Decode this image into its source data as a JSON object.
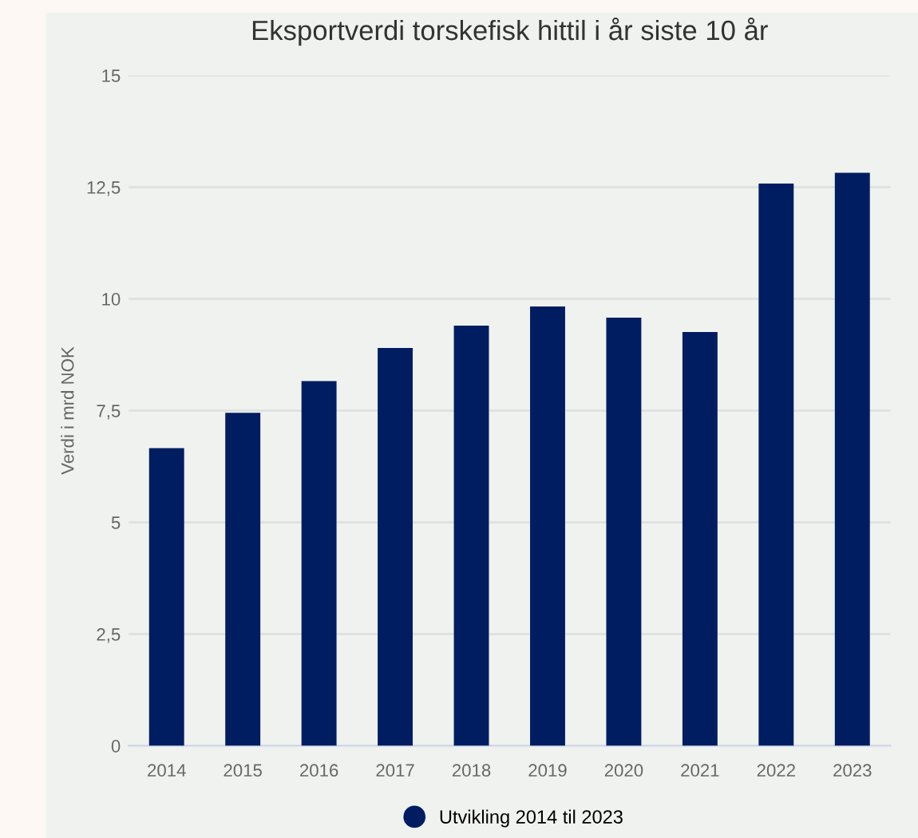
{
  "chart_data": {
    "type": "bar",
    "title": "Eksportverdi torskefisk hittil i år siste 10 år",
    "ylabel": "Verdi i mrd NOK",
    "categories": [
      "2014",
      "2015",
      "2016",
      "2017",
      "2018",
      "2019",
      "2020",
      "2021",
      "2022",
      "2023"
    ],
    "series": [
      {
        "name": "Utvikling 2014 til 2023",
        "color": "#001d62",
        "values": [
          6.66,
          7.45,
          8.16,
          8.9,
          9.4,
          9.83,
          9.58,
          9.26,
          12.58,
          12.82
        ]
      }
    ],
    "ylim": [
      0,
      15
    ],
    "yticks": [
      0,
      {
        "value": 2.5,
        "label": "2,5"
      },
      5,
      {
        "value": 7.5,
        "label": "7,5"
      },
      10,
      {
        "value": 12.5,
        "label": "12,5"
      },
      15
    ],
    "grid": "y",
    "legend": "bottom"
  }
}
